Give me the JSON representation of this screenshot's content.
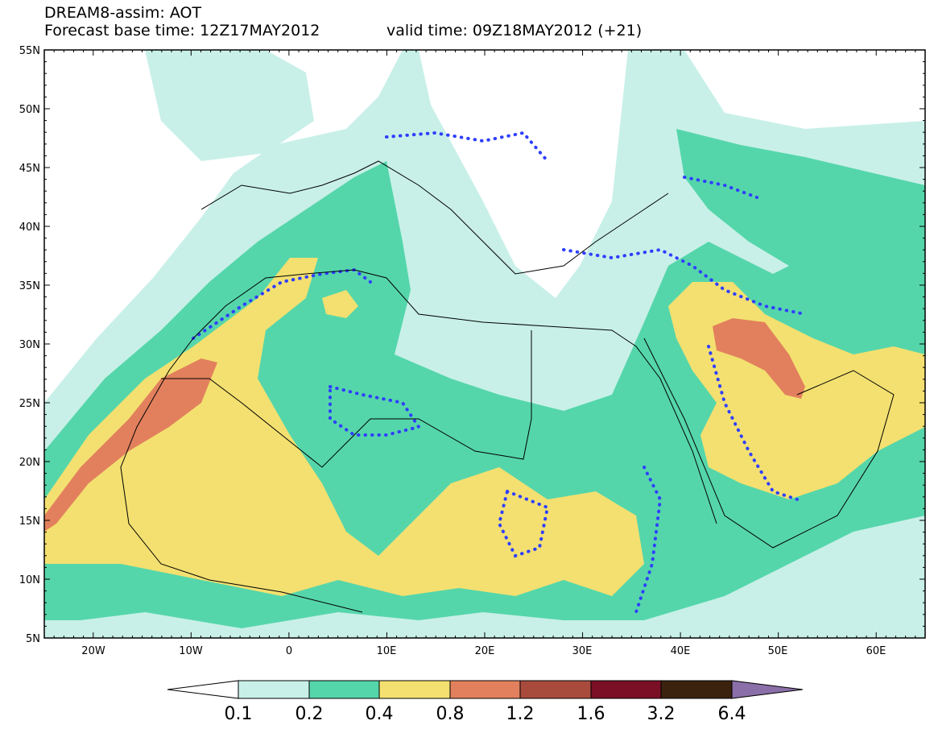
{
  "title": {
    "line1": "DREAM8-assim: AOT",
    "base_time": "Forecast base time: 12Z17MAY2012",
    "valid_time": "valid time: 09Z18MAY2012 (+21)"
  },
  "map": {
    "lon_range": [
      -25,
      65
    ],
    "lat_range": [
      5,
      55
    ],
    "lat_labels": [
      "55N",
      "50N",
      "45N",
      "40N",
      "35N",
      "30N",
      "25N",
      "20N",
      "15N",
      "10N",
      "5N"
    ],
    "lon_labels": [
      "20W",
      "10W",
      "0",
      "10E",
      "20E",
      "30E",
      "40E",
      "50E",
      "60E"
    ],
    "contour_style": "dotted blue (#2f3fff)",
    "coastline_color": "#000000"
  },
  "colorbar": {
    "labels": [
      "0.1",
      "0.2",
      "0.4",
      "0.8",
      "1.2",
      "1.6",
      "3.2",
      "6.4"
    ],
    "colors": [
      "#ffffff",
      "#c8f0e8",
      "#55d6aa",
      "#f3e070",
      "#e2805d",
      "#a84a3c",
      "#7a0f25",
      "#3a220f",
      "#8b6fa8"
    ]
  }
}
